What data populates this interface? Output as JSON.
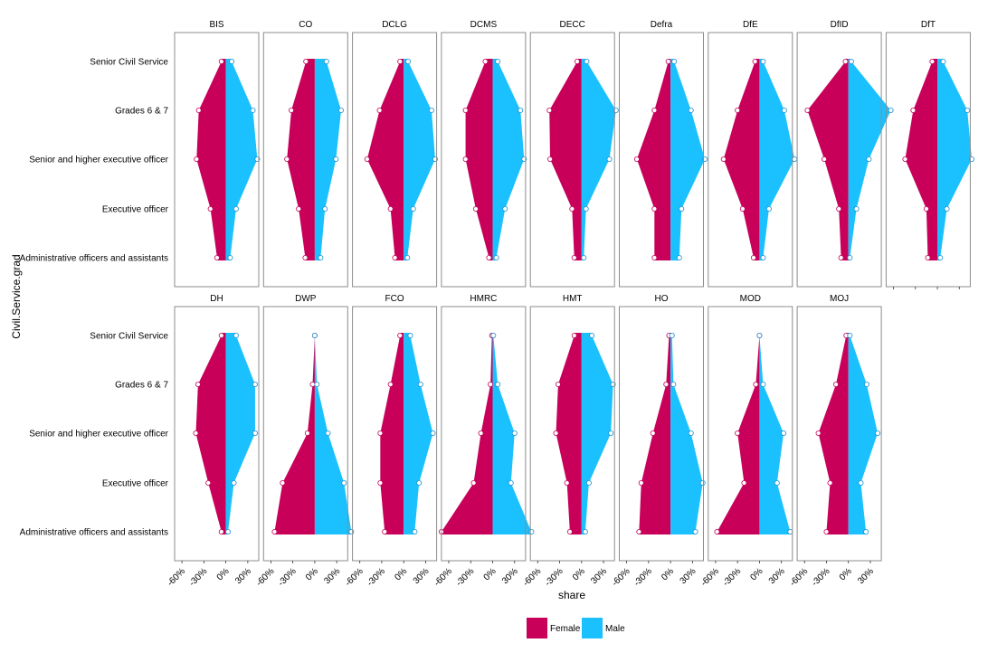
{
  "chart_data": {
    "type": "area",
    "subtype": "faceted population pyramid",
    "xlabel": "share",
    "ylabel": "Civil.Service.grad",
    "xlim": [
      -70,
      45
    ],
    "x_ticks": [
      -60,
      -30,
      0,
      30
    ],
    "x_tick_labels": [
      "-60%",
      "-30%",
      "0%",
      "30%"
    ],
    "grid": false,
    "legend": {
      "position": "bottom",
      "entries": [
        {
          "name": "Female",
          "color": "#C8005A"
        },
        {
          "name": "Male",
          "color": "#1BC1FF"
        }
      ]
    },
    "grades": [
      "Senior Civil Service",
      "Grades 6 & 7",
      "Senior and higher executive officer",
      "Executive officer",
      "Administrative officers and assistants"
    ],
    "panels": [
      {
        "name": "BIS",
        "female": [
          -6,
          -37,
          -40,
          -21,
          -12
        ],
        "male": [
          8,
          37,
          43,
          14,
          6
        ]
      },
      {
        "name": "CO",
        "female": [
          -12,
          -32,
          -38,
          -22,
          -13
        ],
        "male": [
          16,
          36,
          29,
          14,
          8
        ]
      },
      {
        "name": "DCLG",
        "female": [
          -5,
          -33,
          -50,
          -18,
          -12
        ],
        "male": [
          6,
          38,
          43,
          13,
          5
        ]
      },
      {
        "name": "DCMS",
        "female": [
          -10,
          -37,
          -37,
          -23,
          -5
        ],
        "male": [
          7,
          38,
          43,
          17,
          5
        ]
      },
      {
        "name": "DECC",
        "female": [
          -6,
          -44,
          -43,
          -13,
          -10
        ],
        "male": [
          7,
          47,
          38,
          6,
          3
        ]
      },
      {
        "name": "Defra",
        "female": [
          -3,
          -22,
          -46,
          -22,
          -22
        ],
        "male": [
          5,
          28,
          47,
          15,
          12
        ]
      },
      {
        "name": "DfE",
        "female": [
          -6,
          -30,
          -49,
          -23,
          -8
        ],
        "male": [
          5,
          34,
          48,
          13,
          5
        ]
      },
      {
        "name": "DfID",
        "female": [
          -4,
          -56,
          -33,
          -13,
          -10
        ],
        "male": [
          4,
          58,
          28,
          11,
          2
        ]
      },
      {
        "name": "DfT",
        "female": [
          -7,
          -33,
          -44,
          -15,
          -13
        ],
        "male": [
          8,
          41,
          47,
          13,
          4
        ]
      },
      {
        "name": "DH",
        "female": [
          -6,
          -38,
          -41,
          -24,
          -6
        ],
        "male": [
          14,
          40,
          40,
          11,
          3
        ]
      },
      {
        "name": "DWP",
        "female": [
          0,
          -3,
          -10,
          -44,
          -55
        ],
        "male": [
          0,
          3,
          18,
          40,
          50
        ]
      },
      {
        "name": "FCO",
        "female": [
          -5,
          -18,
          -32,
          -32,
          -26
        ],
        "male": [
          9,
          23,
          40,
          21,
          15
        ]
      },
      {
        "name": "HMRC",
        "female": [
          -1,
          -3,
          -16,
          -26,
          -70
        ],
        "male": [
          1,
          7,
          30,
          25,
          53
        ]
      },
      {
        "name": "HMT",
        "female": [
          -10,
          -32,
          -35,
          -20,
          -16
        ],
        "male": [
          14,
          43,
          40,
          10,
          5
        ]
      },
      {
        "name": "HO",
        "female": [
          -2,
          -6,
          -24,
          -40,
          -43
        ],
        "male": [
          2,
          4,
          28,
          44,
          34
        ]
      },
      {
        "name": "MOD",
        "female": [
          0,
          -5,
          -30,
          -21,
          -58
        ],
        "male": [
          0,
          5,
          33,
          24,
          42
        ]
      },
      {
        "name": "MOJ",
        "female": [
          -3,
          -17,
          -41,
          -25,
          -30
        ],
        "male": [
          2,
          25,
          40,
          17,
          24
        ]
      }
    ]
  }
}
